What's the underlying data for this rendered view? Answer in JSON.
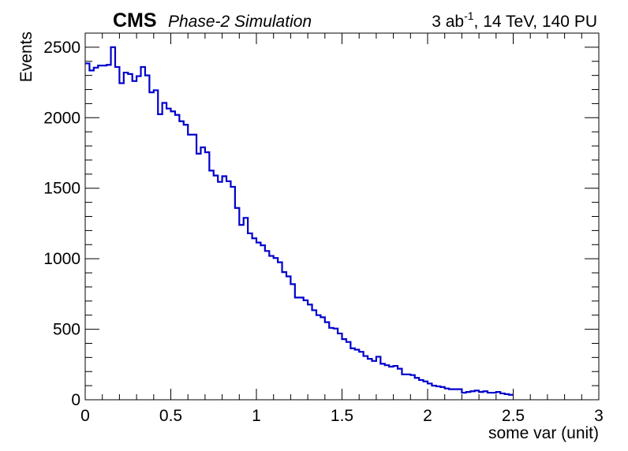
{
  "header": {
    "experiment": "CMS",
    "subtitle": "Phase-2 Simulation",
    "lumi_prefix": "3 ab",
    "lumi_exp": "-1",
    "lumi_suffix": ", 14 TeV, 140 PU"
  },
  "chart_data": {
    "type": "line",
    "style": "step-histogram",
    "xlabel": "some var (unit)",
    "ylabel": "Events",
    "xlim": [
      0,
      3
    ],
    "ylim": [
      0,
      2600
    ],
    "x_ticks": [
      0,
      0.5,
      1,
      1.5,
      2,
      2.5,
      3
    ],
    "x_tick_labels": [
      "0",
      "0.5",
      "1",
      "1.5",
      "2",
      "2.5",
      "3"
    ],
    "y_ticks": [
      0,
      500,
      1000,
      1500,
      2000,
      2500
    ],
    "y_tick_labels": [
      "0",
      "500",
      "1000",
      "1500",
      "2000",
      "2500"
    ],
    "grid": false,
    "line_color": "#0000cc",
    "bin_width": 0.025,
    "values": [
      2385,
      2335,
      2355,
      2370,
      2370,
      2375,
      2500,
      2360,
      2245,
      2320,
      2310,
      2260,
      2295,
      2360,
      2300,
      2180,
      2195,
      2025,
      2105,
      2065,
      2045,
      2020,
      1975,
      1950,
      1880,
      1880,
      1745,
      1790,
      1755,
      1625,
      1590,
      1545,
      1585,
      1550,
      1510,
      1360,
      1240,
      1290,
      1180,
      1145,
      1115,
      1095,
      1055,
      1020,
      1005,
      975,
      905,
      875,
      820,
      725,
      725,
      705,
      675,
      635,
      600,
      585,
      550,
      510,
      505,
      470,
      430,
      410,
      365,
      355,
      340,
      310,
      290,
      275,
      305,
      255,
      245,
      235,
      240,
      220,
      180,
      180,
      175,
      155,
      140,
      130,
      115,
      100,
      95,
      90,
      80,
      75,
      75,
      75,
      50,
      55,
      60,
      65,
      55,
      60,
      50,
      50,
      55,
      45,
      40,
      35
    ]
  }
}
